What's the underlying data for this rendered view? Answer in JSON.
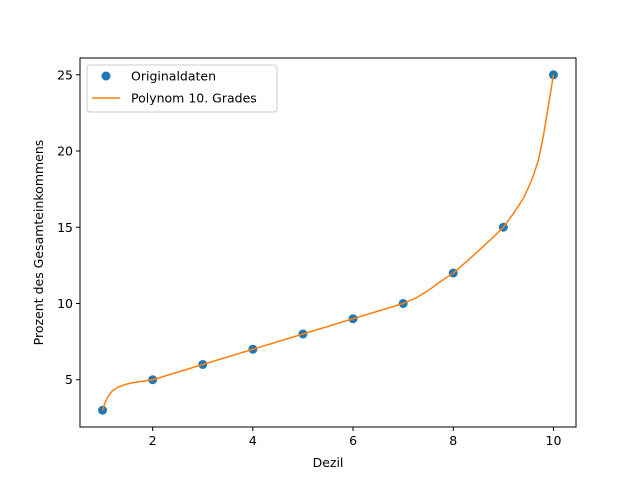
{
  "chart_data": {
    "type": "line",
    "xlabel": "Dezil",
    "ylabel": "Prozent des Gesamteinkommens",
    "xlim": [
      0.55,
      10.45
    ],
    "ylim": [
      1.9,
      26.1
    ],
    "xticks": [
      2,
      4,
      6,
      8,
      10
    ],
    "yticks": [
      5,
      10,
      15,
      20,
      25
    ],
    "grid": false,
    "legend_position": "upper-left",
    "colors": {
      "points": "#1f77b4",
      "curve": "#ff7f0e"
    },
    "series": [
      {
        "name": "Originaldaten",
        "kind": "scatter",
        "x": [
          1,
          2,
          3,
          4,
          5,
          6,
          7,
          8,
          9,
          10
        ],
        "y": [
          3,
          5,
          6,
          7,
          8,
          9,
          10,
          12,
          15,
          25
        ]
      },
      {
        "name": "Polynom 10. Grades",
        "kind": "line",
        "x": [
          1,
          1.05,
          1.1,
          1.15,
          1.2,
          1.3,
          1.4,
          1.5,
          1.6,
          1.8,
          2,
          2.5,
          3,
          3.5,
          4,
          4.5,
          5,
          5.5,
          6,
          6.5,
          7,
          7.25,
          7.5,
          7.75,
          8,
          8.25,
          8.5,
          8.75,
          9,
          9.2,
          9.4,
          9.5,
          9.6,
          9.7,
          9.75,
          9.8,
          9.85,
          9.9,
          9.95,
          10
        ],
        "y": [
          3,
          3.5,
          3.85,
          4.1,
          4.28,
          4.5,
          4.63,
          4.73,
          4.8,
          4.9,
          5,
          5.5,
          6,
          6.5,
          7,
          7.5,
          8,
          8.5,
          9,
          9.5,
          10,
          10.35,
          10.85,
          11.45,
          12,
          12.7,
          13.45,
          14.2,
          15,
          15.9,
          16.9,
          17.6,
          18.4,
          19.4,
          20.2,
          21,
          22,
          23,
          24,
          25
        ]
      }
    ]
  }
}
